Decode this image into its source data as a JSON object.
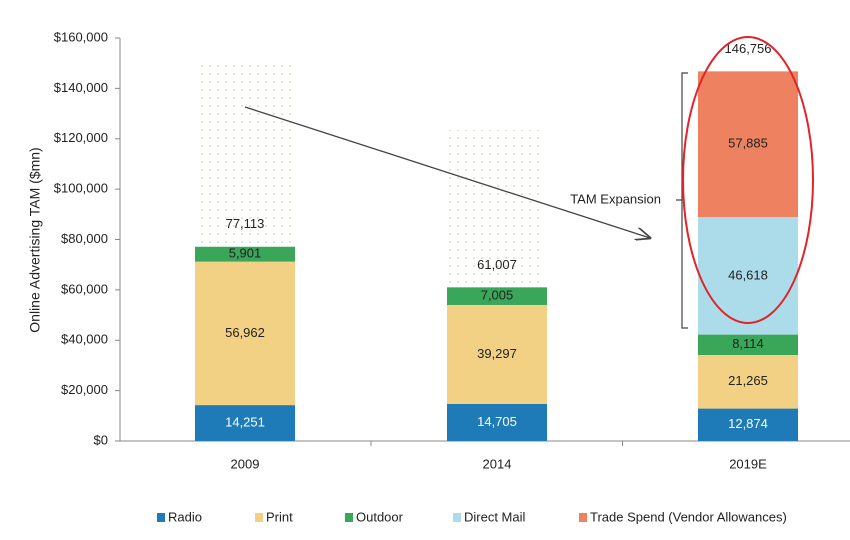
{
  "chart_data": {
    "type": "stacked_bar",
    "y_axis_label": "Online Advertising TAM ($mn)",
    "categories": [
      "2009",
      "2014",
      "2019E"
    ],
    "series": [
      {
        "name": "Radio",
        "color": "#1f7ab8",
        "values": [
          14251,
          14705,
          12874
        ],
        "value_labels": [
          "14,251",
          "14,705",
          "12,874"
        ]
      },
      {
        "name": "Print",
        "color": "#f2d184",
        "values": [
          56962,
          39297,
          21265
        ],
        "value_labels": [
          "56,962",
          "39,297",
          "21,265"
        ]
      },
      {
        "name": "Outdoor",
        "color": "#3aa65a",
        "values": [
          5901,
          7005,
          8114
        ],
        "value_labels": [
          "5,901",
          "7,005",
          "8,114"
        ]
      },
      {
        "name": "Direct Mail",
        "color": "#acdcea",
        "values": [
          null,
          null,
          46618
        ],
        "value_labels": [
          null,
          null,
          "46,618"
        ]
      },
      {
        "name": "Trade Spend (Vendor Allowances)",
        "color": "#ee8160",
        "values": [
          null,
          null,
          57885
        ],
        "value_labels": [
          null,
          null,
          "57,885"
        ]
      }
    ],
    "totals": [
      77113,
      61007,
      146756
    ],
    "total_labels": [
      "77,113",
      "61,007",
      "146,756"
    ],
    "annotation": "TAM Expansion",
    "ylim": [
      0,
      160000
    ],
    "yticks": [
      {
        "value": 0,
        "label": "$0"
      },
      {
        "value": 20000,
        "label": "$20,000"
      },
      {
        "value": 40000,
        "label": "$40,000"
      },
      {
        "value": 60000,
        "label": "$60,000"
      },
      {
        "value": 80000,
        "label": "$80,000"
      },
      {
        "value": 100000,
        "label": "$100,000"
      },
      {
        "value": 120000,
        "label": "$120,000"
      },
      {
        "value": 140000,
        "label": "$140,000"
      },
      {
        "value": 160000,
        "label": "$160,000"
      }
    ],
    "legend": "bottom"
  }
}
